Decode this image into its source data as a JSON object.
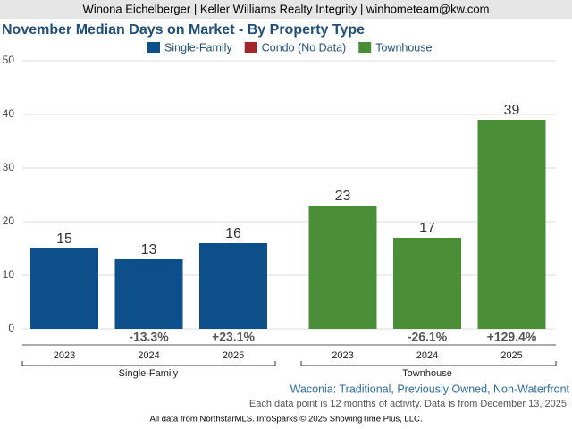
{
  "header": "Winona Eichelberger | Keller Williams Realty Integrity | winhometeam@kw.com",
  "chart_data": {
    "type": "bar",
    "title": "November Median Days on Market - By Property Type",
    "categories": [
      "2023",
      "2024",
      "2025",
      "2023",
      "2024",
      "2025"
    ],
    "group_labels": [
      "Single-Family",
      "Townhouse"
    ],
    "series": [
      {
        "name": "Single-Family",
        "color": "#0d4f8b",
        "values": [
          15,
          13,
          16,
          null,
          null,
          null
        ]
      },
      {
        "name": "Condo (No Data)",
        "color": "#a0282a",
        "values": [
          null,
          null,
          null,
          null,
          null,
          null
        ]
      },
      {
        "name": "Townhouse",
        "color": "#4a8f38",
        "values": [
          null,
          null,
          null,
          23,
          17,
          39
        ]
      }
    ],
    "changes": [
      null,
      "-13.3%",
      "+23.1%",
      null,
      "-26.1%",
      "+129.4%"
    ],
    "ylim": [
      0,
      50
    ],
    "yticks": [
      0,
      10,
      20,
      30,
      40,
      50
    ],
    "grid": true
  },
  "footer": {
    "area": "Waconia: Traditional, Previously Owned, Non-Waterfront",
    "note": "Each data point is 12 months of activity. Data is from December 13, 2025.",
    "source": "All data from NorthstarMLS. InfoSparks © 2025 ShowingTime Plus, LLC."
  }
}
